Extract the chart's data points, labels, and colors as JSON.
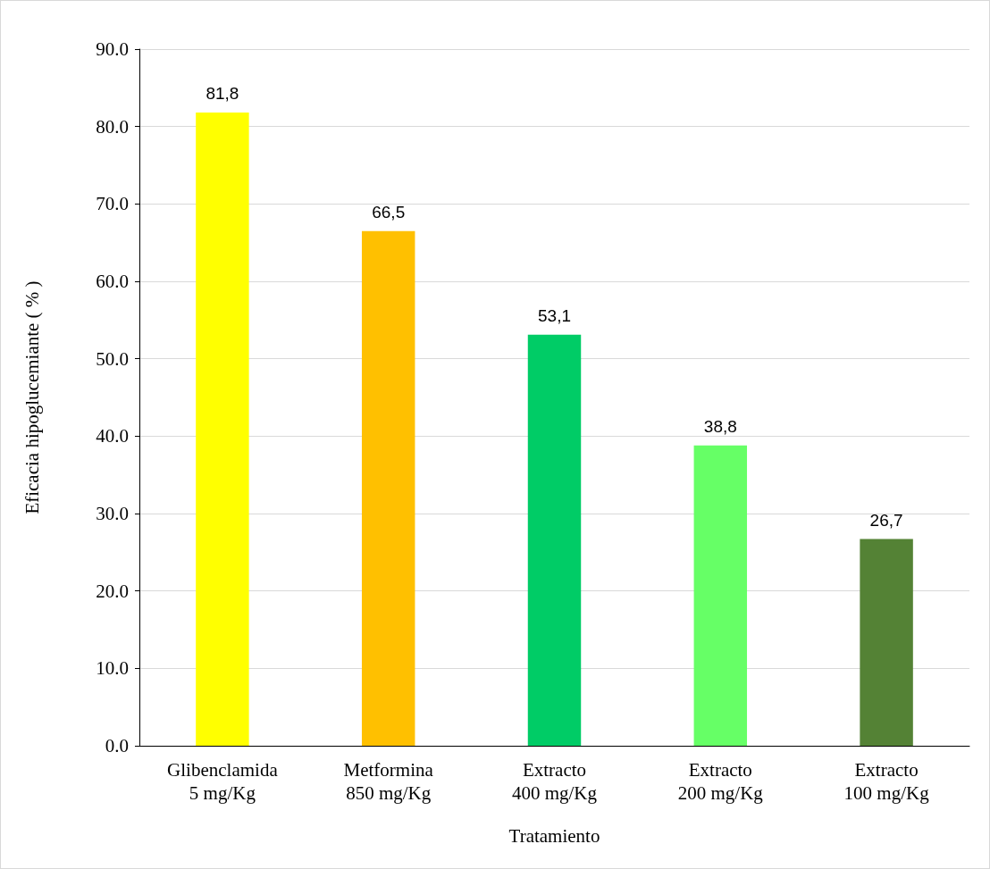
{
  "chart_data": {
    "type": "bar",
    "xlabel": "Tratamiento",
    "ylabel": "Eficacia hipoglucemiante ( % )",
    "categories": [
      "Glibenclamida\n5 mg/Kg",
      "Metformina\n850 mg/Kg",
      "Extracto\n400 mg/Kg",
      "Extracto\n200 mg/Kg",
      "Extracto\n100 mg/Kg"
    ],
    "values": [
      81.8,
      66.5,
      53.1,
      38.8,
      26.7
    ],
    "colors": [
      "#ffff00",
      "#ffc000",
      "#00cc66",
      "#66ff66",
      "#548235"
    ],
    "value_labels": [
      "81,8",
      "66,5",
      "53,1",
      "38,8",
      "26,7"
    ],
    "ylim": [
      0,
      90
    ],
    "yticks": [
      {
        "value": 0,
        "label": "0.0"
      },
      {
        "value": 10,
        "label": "10.0"
      },
      {
        "value": 20,
        "label": "20.0"
      },
      {
        "value": 30,
        "label": "30.0"
      },
      {
        "value": 40,
        "label": "40.0"
      },
      {
        "value": 50,
        "label": "50.0"
      },
      {
        "value": 60,
        "label": "60.0"
      },
      {
        "value": 70,
        "label": "70.0"
      },
      {
        "value": 80,
        "label": "80.0"
      },
      {
        "value": 90,
        "label": "90.0"
      }
    ],
    "grid": "y"
  }
}
